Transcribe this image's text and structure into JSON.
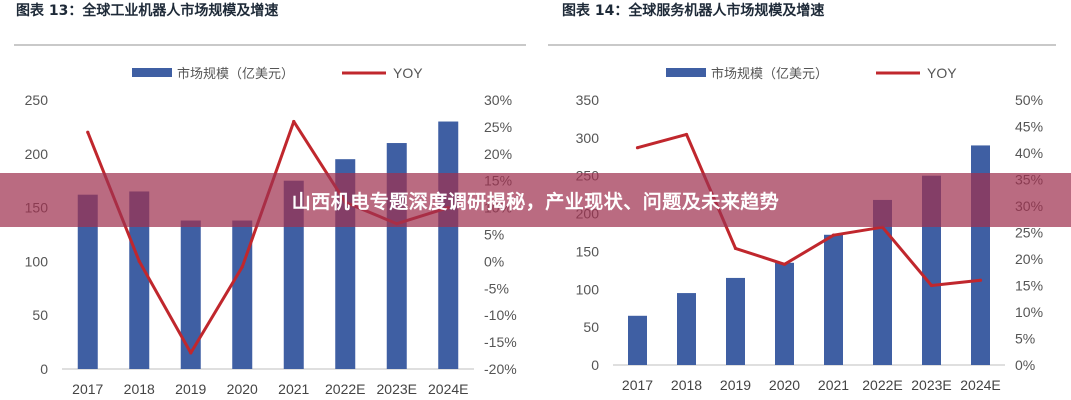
{
  "banner": {
    "text": "山西机电专题深度调研揭秘，产业现状、问题及未来趋势"
  },
  "colors": {
    "bar": "#3f5fa3",
    "line": "#c0272d",
    "banner": "#a03250"
  },
  "chart_data": [
    {
      "type": "bar",
      "title": "图表 13：全球工业机器人市场规模及增速",
      "categories": [
        "2017",
        "2018",
        "2019",
        "2020",
        "2021",
        "2022E",
        "2023E",
        "2024E"
      ],
      "series": [
        {
          "name": "市场规模（亿美元）",
          "type": "bar",
          "axis": "left",
          "values": [
            162,
            165,
            138,
            138,
            175,
            195,
            210,
            230
          ]
        },
        {
          "name": "YOY",
          "type": "line",
          "axis": "right",
          "values": [
            24,
            0,
            -17,
            -1,
            26,
            11,
            7,
            10
          ]
        }
      ],
      "ylim_left": [
        0,
        250
      ],
      "yticks_left": [
        "0",
        "50",
        "100",
        "150",
        "200",
        "250"
      ],
      "ylim_right": [
        -20,
        30
      ],
      "yticks_right": [
        "-20%",
        "-15%",
        "-10%",
        "-5%",
        "0%",
        "5%",
        "10%",
        "15%",
        "20%",
        "25%",
        "30%"
      ],
      "legend": [
        "市场规模（亿美元）",
        "YOY"
      ],
      "legend_position": "top-center",
      "grid": false
    },
    {
      "type": "bar",
      "title": "图表 14：全球服务机器人市场规模及增速",
      "categories": [
        "2017",
        "2018",
        "2019",
        "2020",
        "2021",
        "2022E",
        "2023E",
        "2024E"
      ],
      "series": [
        {
          "name": "市场规模（亿美元）",
          "type": "bar",
          "axis": "left",
          "values": [
            65,
            95,
            115,
            135,
            172,
            218,
            250,
            290
          ]
        },
        {
          "name": "YOY",
          "type": "line",
          "axis": "right",
          "values": [
            41,
            43.5,
            22,
            19,
            24.5,
            26,
            15,
            16
          ]
        }
      ],
      "ylim_left": [
        0,
        350
      ],
      "yticks_left": [
        "0",
        "50",
        "100",
        "150",
        "200",
        "250",
        "300",
        "350"
      ],
      "ylim_right": [
        0,
        50
      ],
      "yticks_right": [
        "0%",
        "5%",
        "10%",
        "15%",
        "20%",
        "25%",
        "30%",
        "35%",
        "40%",
        "45%",
        "50%"
      ],
      "legend": [
        "市场规模（亿美元）",
        "YOY"
      ],
      "legend_position": "top-center",
      "grid": false
    }
  ]
}
